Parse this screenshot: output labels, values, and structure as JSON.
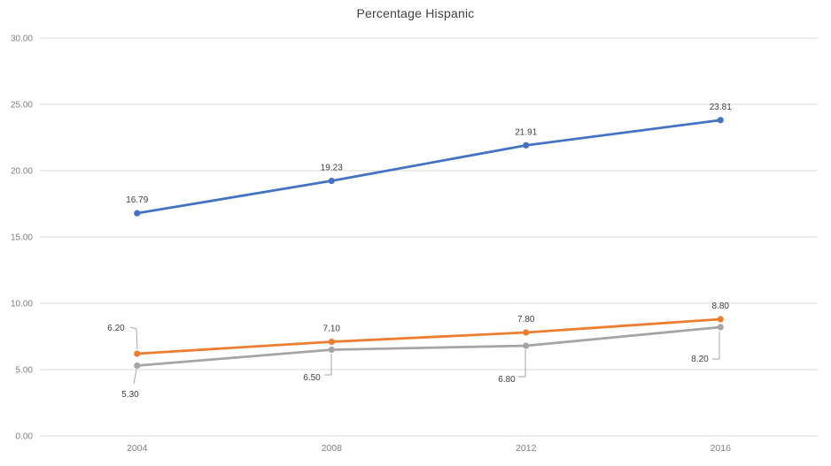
{
  "chart_data": {
    "type": "line",
    "title": "Percentage Hispanic",
    "categories": [
      "2004",
      "2008",
      "2012",
      "2016"
    ],
    "series": [
      {
        "name": "series-1-blue",
        "color": "#4472C4",
        "values": [
          16.79,
          19.23,
          21.91,
          23.81
        ],
        "point_labels": [
          "16.79",
          "19.23",
          "21.91",
          "23.81"
        ]
      },
      {
        "name": "series-2-orange",
        "color": "#ED7D31",
        "values": [
          6.2,
          7.1,
          7.8,
          8.8
        ],
        "point_labels": [
          "6.20",
          "7.10",
          "7.80",
          "8.80"
        ]
      },
      {
        "name": "series-3-gray",
        "color": "#A5A5A5",
        "values": [
          5.3,
          6.5,
          6.8,
          8.2
        ],
        "point_labels": [
          "5.30",
          "6.50",
          "6.80",
          "8.20"
        ]
      }
    ],
    "ylim": [
      0,
      30
    ],
    "ytick_step": 5,
    "yticks": [
      "0.00",
      "5.00",
      "10.00",
      "15.00",
      "20.00",
      "25.00",
      "30.00"
    ],
    "xlabel": "",
    "ylabel": "",
    "grid": true,
    "legend": "none",
    "data_labels": true
  },
  "styles": {
    "background": "#FFFFFF",
    "gridline_color": "#D9D9D9",
    "axis_text_color": "#7F7F7F",
    "data_label_color": "#404040",
    "leader_line_color": "#A6A6A6",
    "title_color": "#404040"
  }
}
